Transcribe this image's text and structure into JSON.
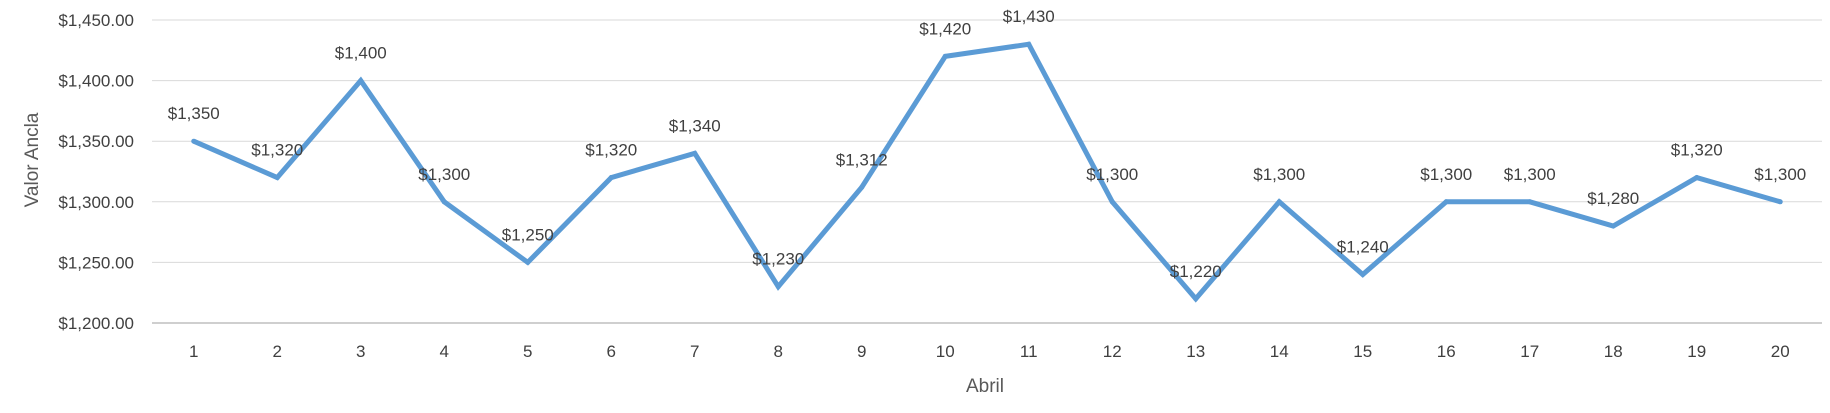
{
  "chart_data": {
    "type": "line",
    "xlabel": "Abril",
    "ylabel": "Valor Ancla",
    "categories": [
      "1",
      "2",
      "3",
      "4",
      "5",
      "6",
      "7",
      "8",
      "9",
      "10",
      "11",
      "12",
      "13",
      "14",
      "15",
      "16",
      "17",
      "18",
      "19",
      "20"
    ],
    "series": [
      {
        "values": [
          1350,
          1320,
          1400,
          1300,
          1250,
          1320,
          1340,
          1230,
          1312,
          1420,
          1430,
          1300,
          1220,
          1300,
          1240,
          1300,
          1300,
          1280,
          1320,
          1300
        ],
        "data_labels": [
          "$1,350",
          "$1,320",
          "$1,400",
          "$1,300",
          "$1,250",
          "$1,320",
          "$1,340",
          "$1,230",
          "$1,312",
          "$1,420",
          "$1,430",
          "$1,300",
          "$1,220",
          "$1,300",
          "$1,240",
          "$1,300",
          "$1,300",
          "$1,280",
          "$1,320",
          "$1,300"
        ],
        "color": "#5b9bd5"
      }
    ],
    "yticks": [
      1200,
      1250,
      1300,
      1350,
      1400,
      1450
    ],
    "ytick_labels": [
      "$1,200.00",
      "$1,250.00",
      "$1,300.00",
      "$1,350.00",
      "$1,400.00",
      "$1,450.00"
    ],
    "ylim": [
      1200,
      1450
    ],
    "grid": true,
    "gridline_color": "#d9d9d9",
    "axis_line_color": "#bfbfbf"
  }
}
